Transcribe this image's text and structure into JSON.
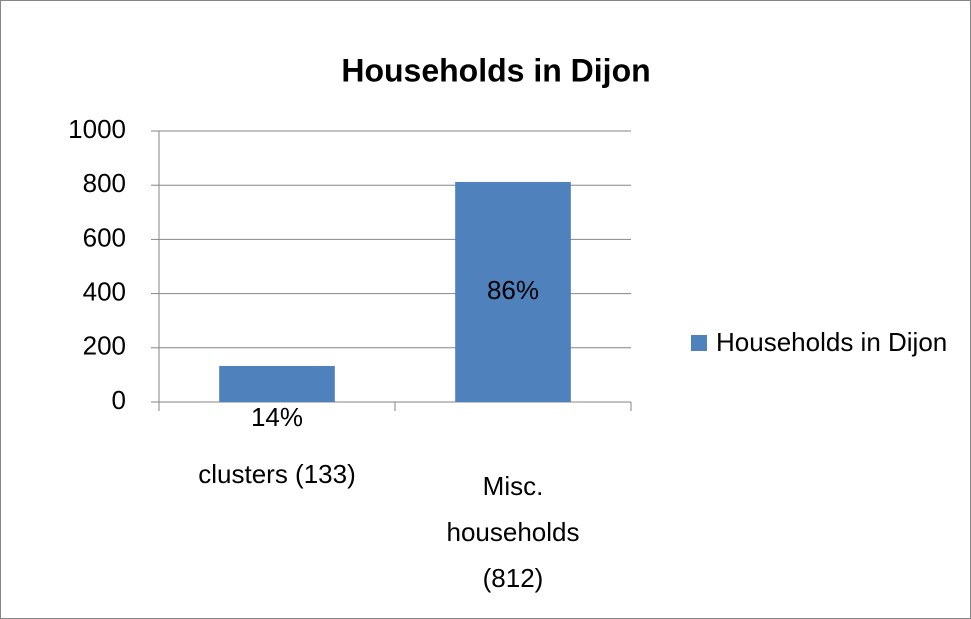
{
  "chart_data": {
    "type": "bar",
    "title": "Households in Dijon",
    "categories": [
      "clusters (133)",
      "Misc. households (812)"
    ],
    "series": [
      {
        "name": "Households in Dijon",
        "color": "#4f81bd",
        "values": [
          133,
          812
        ]
      }
    ],
    "annotations": [
      "14%",
      "86%"
    ],
    "ylim": [
      0,
      1000
    ],
    "yticks": [
      0,
      200,
      400,
      600,
      800,
      1000
    ],
    "grid": true,
    "legend": "right"
  }
}
